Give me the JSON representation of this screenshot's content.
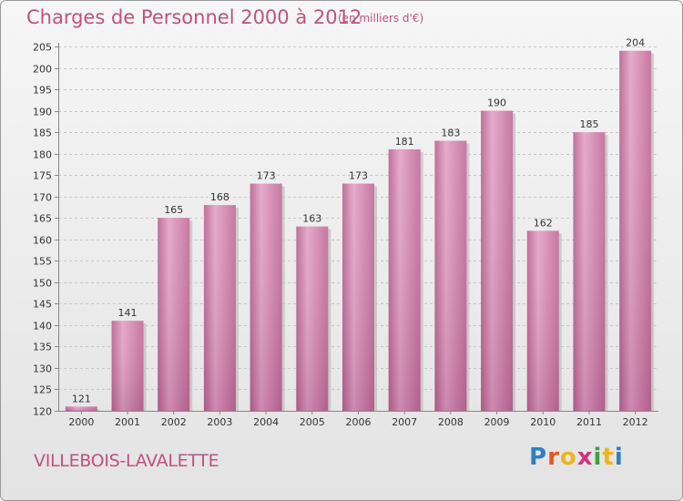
{
  "chart_data": {
    "type": "bar",
    "title": "Charges de Personnel 2000 à 2012",
    "subtitle": "(en milliers d'€)",
    "categories": [
      "2000",
      "2001",
      "2002",
      "2003",
      "2004",
      "2005",
      "2006",
      "2007",
      "2008",
      "2009",
      "2010",
      "2011",
      "2012"
    ],
    "values": [
      121,
      141,
      165,
      168,
      173,
      163,
      173,
      181,
      183,
      190,
      162,
      185,
      204
    ],
    "value_labels": [
      "121",
      "141",
      "165",
      "168",
      "173",
      "163",
      "173",
      "181",
      "183",
      "190",
      "162",
      "185",
      "204"
    ],
    "ylim": [
      120,
      205
    ],
    "yticks": [
      120,
      125,
      130,
      135,
      140,
      145,
      150,
      155,
      160,
      165,
      170,
      175,
      180,
      185,
      190,
      195,
      200,
      205
    ],
    "ytick_labels": [
      "120",
      "125",
      "130",
      "135",
      "140",
      "145",
      "150",
      "155",
      "160",
      "165",
      "170",
      "175",
      "180",
      "185",
      "190",
      "195",
      "200",
      "205"
    ],
    "grid": true,
    "bar_color": "#d07aa8",
    "xlabel": "",
    "ylabel": ""
  },
  "footer": {
    "commune": "VILLEBOIS-LAVALETTE",
    "brand_letters": [
      {
        "char": "P",
        "color": "#2f7fc1"
      },
      {
        "char": "r",
        "color": "#e8561e"
      },
      {
        "char": "o",
        "color": "#f2b318"
      },
      {
        "char": "x",
        "color": "#d1327c"
      },
      {
        "char": "i",
        "color": "#3aa53a"
      },
      {
        "char": "t",
        "color": "#f2b318"
      },
      {
        "char": "i",
        "color": "#2f7fc1"
      }
    ]
  }
}
